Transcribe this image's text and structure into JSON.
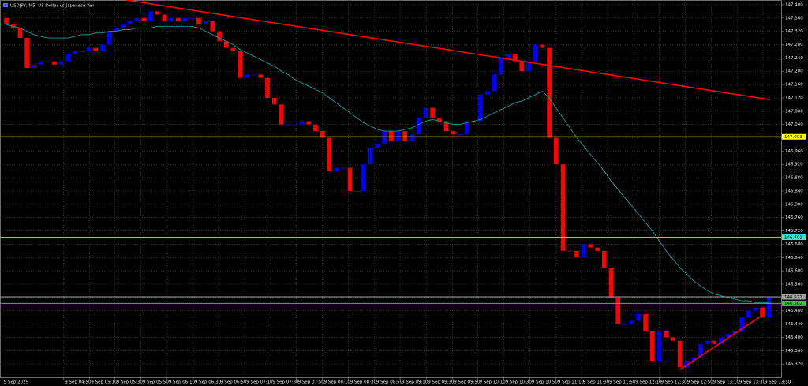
{
  "chart_data": {
    "type": "candlestick",
    "title": "USDJPY, M5:  US Dollar vs Japanese Yen",
    "up_color": "#0000ff",
    "down_color": "#ff0000",
    "open": [
      147.36,
      147.34,
      147.33,
      147.3,
      147.21,
      147.22,
      147.23,
      147.23,
      147.22,
      147.23,
      147.25,
      147.26,
      147.26,
      147.27,
      147.26,
      147.28,
      147.32,
      147.33,
      147.34,
      147.35,
      147.36,
      147.35,
      147.38,
      147.37,
      147.35,
      147.36,
      147.35,
      147.36,
      147.36,
      147.34,
      147.35,
      147.32,
      147.29,
      147.27,
      147.26,
      147.18,
      147.19,
      147.19,
      147.18,
      147.12,
      147.1,
      147.04,
      147.04,
      147.04,
      147.05,
      147.04,
      147.02,
      147.0,
      146.9,
      146.91,
      146.91,
      146.84,
      146.84,
      146.92,
      146.97,
      146.98,
      147.02,
      146.99,
      147.02,
      146.99,
      147.01,
      147.06,
      147.09,
      147.06,
      147.05,
      147.02,
      147.01,
      147.01,
      147.05,
      147.05,
      147.13,
      147.14,
      147.19,
      147.24,
      147.25,
      147.23,
      147.2,
      147.23,
      147.28,
      147.27,
      147.0,
      146.92,
      146.66,
      146.66,
      146.64,
      146.68,
      146.67,
      146.66,
      146.61,
      146.52,
      146.44,
      146.44,
      146.45,
      146.47,
      146.42,
      146.33,
      146.42,
      146.4,
      146.39,
      146.31,
      146.33,
      146.34,
      146.38,
      146.39,
      146.38,
      146.4,
      146.41,
      146.42,
      146.46,
      146.48,
      146.49,
      146.46
    ],
    "close": [
      147.34,
      147.33,
      147.3,
      147.21,
      147.22,
      147.23,
      147.23,
      147.22,
      147.23,
      147.25,
      147.26,
      147.26,
      147.27,
      147.26,
      147.28,
      147.32,
      147.33,
      147.34,
      147.35,
      147.36,
      147.35,
      147.38,
      147.37,
      147.35,
      147.36,
      147.35,
      147.36,
      147.36,
      147.34,
      147.35,
      147.32,
      147.29,
      147.27,
      147.26,
      147.18,
      147.19,
      147.19,
      147.18,
      147.12,
      147.1,
      147.04,
      147.04,
      147.04,
      147.05,
      147.04,
      147.02,
      147.0,
      146.9,
      146.91,
      146.91,
      146.84,
      146.84,
      146.92,
      146.97,
      146.98,
      147.02,
      146.99,
      147.02,
      146.99,
      147.01,
      147.06,
      147.09,
      147.06,
      147.05,
      147.02,
      147.01,
      147.01,
      147.05,
      147.05,
      147.13,
      147.14,
      147.19,
      147.24,
      147.25,
      147.23,
      147.2,
      147.23,
      147.28,
      147.27,
      147.0,
      146.92,
      146.66,
      146.66,
      146.64,
      146.68,
      146.67,
      146.66,
      146.61,
      146.52,
      146.44,
      146.44,
      146.45,
      146.47,
      146.42,
      146.33,
      146.42,
      146.4,
      146.39,
      146.31,
      146.33,
      146.34,
      146.38,
      146.39,
      146.38,
      146.4,
      146.41,
      146.42,
      146.46,
      146.48,
      146.49,
      146.46,
      146.52
    ],
    "ma": {
      "color": "#1f9a9a",
      "values": [
        147.34,
        147.335,
        147.33,
        147.32,
        147.31,
        147.305,
        147.3,
        147.3,
        147.3,
        147.3,
        147.305,
        147.31,
        147.31,
        147.315,
        147.315,
        147.32,
        147.32,
        147.325,
        147.325,
        147.33,
        147.33,
        147.33,
        147.335,
        147.335,
        147.335,
        147.335,
        147.335,
        147.335,
        147.33,
        147.32,
        147.31,
        147.3,
        147.29,
        147.28,
        147.265,
        147.255,
        147.245,
        147.235,
        147.225,
        147.215,
        147.2,
        147.19,
        147.175,
        147.165,
        147.155,
        147.145,
        147.135,
        147.12,
        147.105,
        147.09,
        147.075,
        147.06,
        147.045,
        147.035,
        147.025,
        147.02,
        147.02,
        147.02,
        147.025,
        147.03,
        147.04,
        147.05,
        147.055,
        147.05,
        147.045,
        147.04,
        147.04,
        147.045,
        147.05,
        147.055,
        147.065,
        147.075,
        147.085,
        147.095,
        147.105,
        147.11,
        147.12,
        147.13,
        147.14,
        147.12,
        147.09,
        147.06,
        147.03,
        147.0,
        146.975,
        146.95,
        146.925,
        146.9,
        146.87,
        146.845,
        146.82,
        146.795,
        146.77,
        146.745,
        146.72,
        146.69,
        146.66,
        146.635,
        146.61,
        146.59,
        146.57,
        146.555,
        146.54,
        146.53,
        146.525,
        146.52,
        146.515,
        146.51,
        146.51,
        146.505,
        146.505,
        146.505
      ]
    },
    "levels": [
      {
        "value": 147.003,
        "color": "#ffff00"
      },
      {
        "value": 146.701,
        "color": "#40e0e0"
      },
      {
        "value": 146.522,
        "color": "#a0a0a0"
      },
      {
        "value": 146.502,
        "color": "#32cd32"
      }
    ],
    "trendlines": [
      {
        "color": "#ff0000",
        "x": [
          17.45,
          111.0
        ],
        "y": [
          147.414,
          147.115
        ]
      },
      {
        "color": "#ff0000",
        "x": [
          98.0,
          110.2
        ],
        "y": [
          146.303,
          146.469
        ]
      }
    ],
    "xlim": [
      -0.92,
      112.74
    ],
    "xticks": [
      {
        "value": -0.6,
        "label": "9 Sep 2025"
      },
      {
        "value": 8.3,
        "label": "9 Sep 04:50"
      },
      {
        "value": 12.1,
        "label": "9 Sep 05:10"
      },
      {
        "value": 15.8,
        "label": "9 Sep 05:30"
      },
      {
        "value": 19.6,
        "label": "9 Sep 05:50"
      },
      {
        "value": 23.4,
        "label": "9 Sep 06:10"
      },
      {
        "value": 27.2,
        "label": "9 Sep 06:30"
      },
      {
        "value": 30.9,
        "label": "9 Sep 06:50"
      },
      {
        "value": 34.7,
        "label": "9 Sep 07:10"
      },
      {
        "value": 38.5,
        "label": "9 Sep 07:30"
      },
      {
        "value": 42.2,
        "label": "9 Sep 07:50"
      },
      {
        "value": 46.0,
        "label": "9 Sep 08:10"
      },
      {
        "value": 49.8,
        "label": "9 Sep 08:30"
      },
      {
        "value": 53.6,
        "label": "9 Sep 08:50"
      },
      {
        "value": 57.3,
        "label": "9 Sep 09:10"
      },
      {
        "value": 61.1,
        "label": "9 Sep 09:30"
      },
      {
        "value": 64.9,
        "label": "9 Sep 09:50"
      },
      {
        "value": 68.6,
        "label": "9 Sep 10:10"
      },
      {
        "value": 72.4,
        "label": "9 Sep 10:30"
      },
      {
        "value": 76.2,
        "label": "9 Sep 10:50"
      },
      {
        "value": 80.0,
        "label": "9 Sep 11:10"
      },
      {
        "value": 83.7,
        "label": "9 Sep 11:30"
      },
      {
        "value": 87.5,
        "label": "9 Sep 11:50"
      },
      {
        "value": 91.3,
        "label": "9 Sep 12:10"
      },
      {
        "value": 95.0,
        "label": "9 Sep 12:30"
      },
      {
        "value": 98.8,
        "label": "9 Sep 12:50"
      },
      {
        "value": 102.6,
        "label": "9 Sep 13:10"
      },
      {
        "value": 106.4,
        "label": "9 Sep 13:30"
      },
      {
        "value": 110.1,
        "label": "9 Sep 13:50"
      }
    ],
    "ylim": [
      146.28,
      147.414
    ],
    "yticks": [
      {
        "value": 147.4,
        "label": "147.400"
      },
      {
        "value": 147.36,
        "label": "147.360"
      },
      {
        "value": 147.32,
        "label": "147.320"
      },
      {
        "value": 147.28,
        "label": "147.280"
      },
      {
        "value": 147.24,
        "label": "147.240"
      },
      {
        "value": 147.2,
        "label": "147.200"
      },
      {
        "value": 147.16,
        "label": "147.160"
      },
      {
        "value": 147.12,
        "label": "147.120"
      },
      {
        "value": 147.08,
        "label": "147.080"
      },
      {
        "value": 147.04,
        "label": "147.040"
      },
      {
        "value": 147.0,
        "label": "147.000"
      },
      {
        "value": 146.96,
        "label": "146.960"
      },
      {
        "value": 146.92,
        "label": "146.920"
      },
      {
        "value": 146.88,
        "label": "146.880"
      },
      {
        "value": 146.84,
        "label": "146.840"
      },
      {
        "value": 146.8,
        "label": "146.800"
      },
      {
        "value": 146.76,
        "label": "146.760"
      },
      {
        "value": 146.72,
        "label": "146.720"
      },
      {
        "value": 146.68,
        "label": "146.680"
      },
      {
        "value": 146.64,
        "label": "146.640"
      },
      {
        "value": 146.6,
        "label": "146.600"
      },
      {
        "value": 146.56,
        "label": "146.560"
      },
      {
        "value": 146.52,
        "label": "146.520"
      },
      {
        "value": 146.48,
        "label": "146.480"
      },
      {
        "value": 146.44,
        "label": "146.440"
      },
      {
        "value": 146.4,
        "label": "146.400"
      },
      {
        "value": 146.36,
        "label": "146.360"
      },
      {
        "value": 146.32,
        "label": "146.320"
      }
    ],
    "grid": true
  }
}
